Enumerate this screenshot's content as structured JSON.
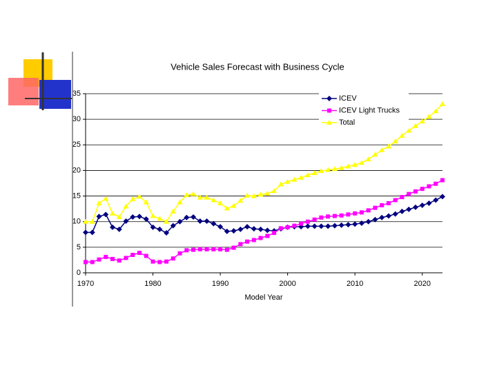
{
  "chart_data": {
    "type": "line",
    "title": "Vehicle Sales Forecast with Business Cycle",
    "x_label": "Model Year",
    "x": [
      1970,
      1971,
      1972,
      1973,
      1974,
      1975,
      1976,
      1977,
      1978,
      1979,
      1980,
      1981,
      1982,
      1983,
      1984,
      1985,
      1986,
      1987,
      1988,
      1989,
      1990,
      1991,
      1992,
      1993,
      1994,
      1995,
      1996,
      1997,
      1998,
      1999,
      2000,
      2001,
      2002,
      2003,
      2004,
      2005,
      2006,
      2007,
      2008,
      2009,
      2010,
      2011,
      2012,
      2013,
      2014,
      2015,
      2016,
      2017,
      2018,
      2019,
      2020,
      2021,
      2022,
      2023
    ],
    "xlim": [
      1970,
      2023
    ],
    "xticks": [
      1970,
      1980,
      1990,
      2000,
      2010,
      2020
    ],
    "ylim": [
      0,
      35
    ],
    "yticks": [
      0,
      5,
      10,
      15,
      20,
      25,
      30,
      35
    ],
    "grid": true,
    "legend": "top-right",
    "series": [
      {
        "name": "ICEV",
        "color": "#000080",
        "marker": "diamond",
        "values": [
          7.9,
          7.9,
          11.0,
          11.4,
          8.9,
          8.5,
          10.1,
          10.9,
          11.0,
          10.5,
          8.9,
          8.5,
          7.8,
          9.2,
          10.0,
          10.8,
          10.9,
          10.1,
          10.1,
          9.6,
          9.0,
          8.1,
          8.2,
          8.5,
          9.0,
          8.6,
          8.5,
          8.3,
          8.2,
          8.6,
          8.9,
          9.0,
          9.0,
          9.1,
          9.1,
          9.1,
          9.1,
          9.2,
          9.3,
          9.4,
          9.5,
          9.7,
          10.0,
          10.4,
          10.8,
          11.1,
          11.5,
          12.0,
          12.4,
          12.8,
          13.2,
          13.6,
          14.2,
          14.9
        ]
      },
      {
        "name": "ICEV Light Trucks",
        "color": "#ff00ff",
        "marker": "square",
        "values": [
          2.1,
          2.1,
          2.6,
          3.1,
          2.7,
          2.4,
          2.9,
          3.5,
          3.9,
          3.3,
          2.2,
          2.1,
          2.2,
          2.8,
          3.8,
          4.4,
          4.5,
          4.6,
          4.6,
          4.6,
          4.6,
          4.5,
          4.9,
          5.6,
          6.1,
          6.4,
          6.8,
          7.2,
          7.8,
          8.7,
          8.9,
          9.2,
          9.6,
          10.0,
          10.4,
          10.8,
          11.0,
          11.1,
          11.2,
          11.4,
          11.6,
          11.8,
          12.2,
          12.7,
          13.2,
          13.6,
          14.2,
          14.8,
          15.4,
          15.9,
          16.4,
          16.9,
          17.4,
          18.1
        ]
      },
      {
        "name": "Total",
        "color": "#ffff00",
        "marker": "triangle",
        "values": [
          10.0,
          10.0,
          13.6,
          14.5,
          11.6,
          10.9,
          13.0,
          14.4,
          14.9,
          13.8,
          11.1,
          10.6,
          10.0,
          12.0,
          13.8,
          15.2,
          15.4,
          14.7,
          14.7,
          14.2,
          13.6,
          12.6,
          13.1,
          14.1,
          15.1,
          15.0,
          15.3,
          15.5,
          16.0,
          17.3,
          17.8,
          18.2,
          18.6,
          19.1,
          19.5,
          19.9,
          20.1,
          20.3,
          20.5,
          20.8,
          21.1,
          21.5,
          22.2,
          23.1,
          24.0,
          24.7,
          25.7,
          26.8,
          27.8,
          28.7,
          29.6,
          30.5,
          31.6,
          33.0
        ]
      }
    ]
  }
}
